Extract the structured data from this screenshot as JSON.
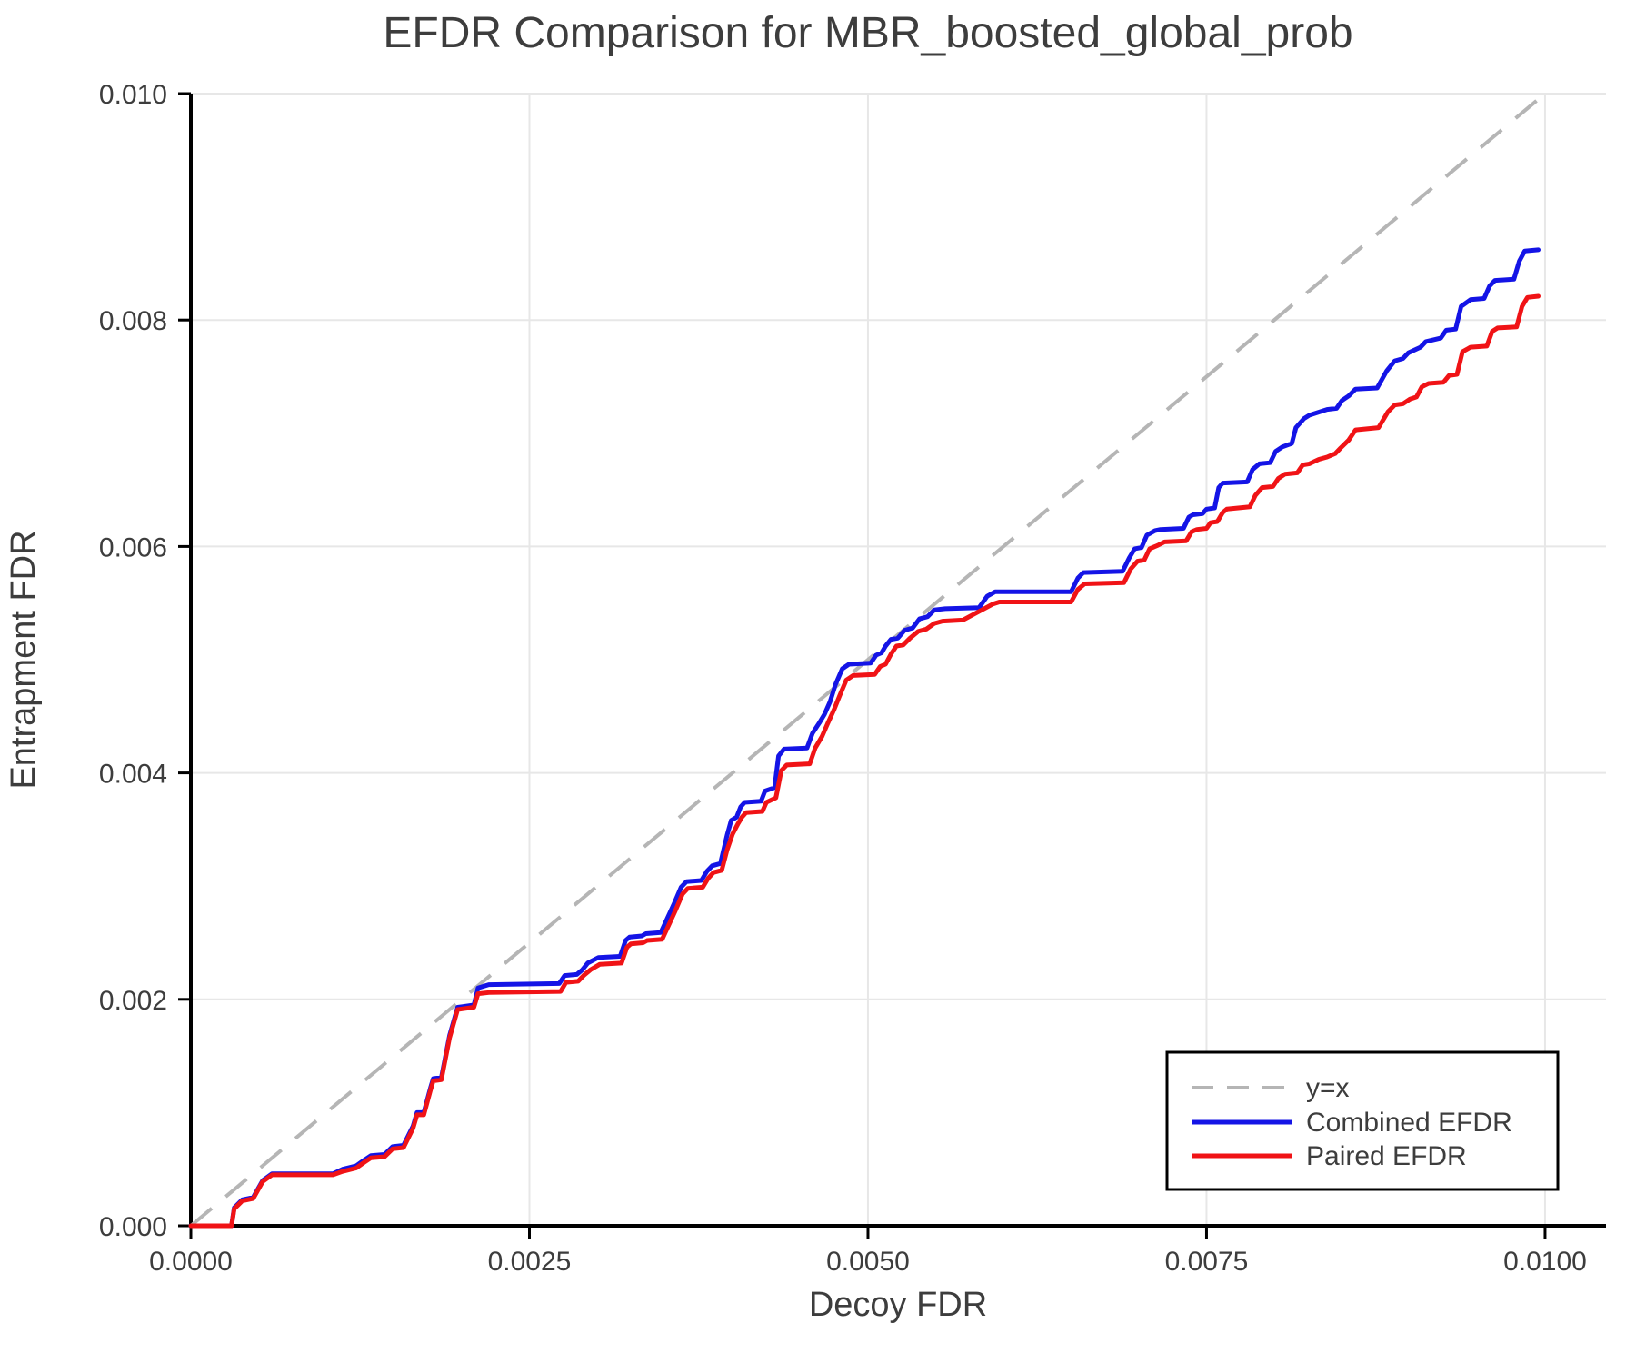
{
  "figure": {
    "title": "EFDR Comparison for MBR_boosted_global_prob",
    "xlabel": "Decoy FDR",
    "ylabel": "Entrapment FDR"
  },
  "colors": {
    "identity": "#b5b5b5",
    "combined": "#1414e6",
    "paired": "#f01316",
    "grid": "#e7e7e7",
    "spine": "#000000",
    "text": "#3d3d3d",
    "legend_border": "#000000",
    "legend_bg": "#ffffff"
  },
  "legend": {
    "items": [
      {
        "label": "y=x"
      },
      {
        "label": "Combined EFDR"
      },
      {
        "label": "Paired EFDR"
      }
    ]
  },
  "chart_data": {
    "type": "line",
    "title": "EFDR Comparison for MBR_boosted_global_prob",
    "xlabel": "Decoy FDR",
    "ylabel": "Entrapment FDR",
    "xlim": [
      0,
      0.01045
    ],
    "ylim": [
      0,
      0.01
    ],
    "grid": true,
    "legend_position": "lower right",
    "xticks": {
      "values": [
        0.0,
        0.0025,
        0.005,
        0.0075,
        0.01
      ],
      "labels": [
        "0.0000",
        "0.0025",
        "0.0050",
        "0.0075",
        "0.0100"
      ]
    },
    "yticks": {
      "values": [
        0.0,
        0.002,
        0.004,
        0.006,
        0.008,
        0.01
      ],
      "labels": [
        "0.000",
        "0.002",
        "0.004",
        "0.006",
        "0.008",
        "0.010"
      ]
    },
    "series": [
      {
        "name": "y=x",
        "style": "dashed",
        "color": "#b5b5b5",
        "width": 4,
        "points": [
          [
            0,
            0
          ],
          [
            0.01,
            0.01
          ]
        ]
      },
      {
        "name": "Combined EFDR",
        "style": "solid",
        "color": "#1414e6",
        "width": 5,
        "points": [
          [
            0,
            0
          ],
          [
            0.0003,
            0
          ],
          [
            0.00032,
            0.00016
          ],
          [
            0.00038,
            0.00023
          ],
          [
            0.00046,
            0.00025
          ],
          [
            0.00053,
            0.0004
          ],
          [
            0.0006,
            0.00046
          ],
          [
            0.00105,
            0.00046
          ],
          [
            0.00112,
            0.0005
          ],
          [
            0.00122,
            0.00053
          ],
          [
            0.00128,
            0.00058
          ],
          [
            0.00133,
            0.00062
          ],
          [
            0.00143,
            0.00063
          ],
          [
            0.00149,
            0.0007
          ],
          [
            0.00157,
            0.00071
          ],
          [
            0.00164,
            0.00088
          ],
          [
            0.00167,
            0.001
          ],
          [
            0.00172,
            0.001
          ],
          [
            0.00177,
            0.00122
          ],
          [
            0.00179,
            0.0013
          ],
          [
            0.00185,
            0.00131
          ],
          [
            0.00191,
            0.00168
          ],
          [
            0.00197,
            0.00193
          ],
          [
            0.00209,
            0.00195
          ],
          [
            0.00212,
            0.0021
          ],
          [
            0.0022,
            0.00213
          ],
          [
            0.00272,
            0.00214
          ],
          [
            0.00276,
            0.00221
          ],
          [
            0.00285,
            0.00222
          ],
          [
            0.00289,
            0.00226
          ],
          [
            0.00293,
            0.00232
          ],
          [
            0.00301,
            0.00237
          ],
          [
            0.00317,
            0.00238
          ],
          [
            0.00321,
            0.00252
          ],
          [
            0.00324,
            0.00255
          ],
          [
            0.00333,
            0.00256
          ],
          [
            0.00336,
            0.00258
          ],
          [
            0.00347,
            0.00259
          ],
          [
            0.00352,
            0.00272
          ],
          [
            0.00357,
            0.00285
          ],
          [
            0.00362,
            0.00299
          ],
          [
            0.00366,
            0.00304
          ],
          [
            0.00377,
            0.00305
          ],
          [
            0.00381,
            0.00313
          ],
          [
            0.00385,
            0.00318
          ],
          [
            0.00391,
            0.0032
          ],
          [
            0.00396,
            0.00345
          ],
          [
            0.00399,
            0.00358
          ],
          [
            0.00403,
            0.00361
          ],
          [
            0.00406,
            0.0037
          ],
          [
            0.00409,
            0.00374
          ],
          [
            0.00421,
            0.00375
          ],
          [
            0.00424,
            0.00384
          ],
          [
            0.00431,
            0.00387
          ],
          [
            0.00434,
            0.00415
          ],
          [
            0.00438,
            0.00421
          ],
          [
            0.00455,
            0.00422
          ],
          [
            0.00459,
            0.00435
          ],
          [
            0.00464,
            0.00444
          ],
          [
            0.00468,
            0.00452
          ],
          [
            0.00472,
            0.00463
          ],
          [
            0.00476,
            0.00478
          ],
          [
            0.00481,
            0.00492
          ],
          [
            0.00486,
            0.00496
          ],
          [
            0.00502,
            0.00497
          ],
          [
            0.00506,
            0.00504
          ],
          [
            0.0051,
            0.00506
          ],
          [
            0.00513,
            0.00512
          ],
          [
            0.00517,
            0.00518
          ],
          [
            0.00522,
            0.00519
          ],
          [
            0.00527,
            0.00526
          ],
          [
            0.00533,
            0.00528
          ],
          [
            0.00538,
            0.00536
          ],
          [
            0.00544,
            0.00538
          ],
          [
            0.00549,
            0.00544
          ],
          [
            0.00557,
            0.00545
          ],
          [
            0.00582,
            0.00546
          ],
          [
            0.00588,
            0.00556
          ],
          [
            0.00594,
            0.0056
          ],
          [
            0.0065,
            0.0056
          ],
          [
            0.00655,
            0.00572
          ],
          [
            0.00659,
            0.00577
          ],
          [
            0.00688,
            0.00578
          ],
          [
            0.00693,
            0.0059
          ],
          [
            0.00697,
            0.00598
          ],
          [
            0.00702,
            0.00599
          ],
          [
            0.00706,
            0.0061
          ],
          [
            0.00712,
            0.00614
          ],
          [
            0.00716,
            0.00615
          ],
          [
            0.00733,
            0.00616
          ],
          [
            0.00737,
            0.00626
          ],
          [
            0.0074,
            0.00628
          ],
          [
            0.00747,
            0.00629
          ],
          [
            0.0075,
            0.00633
          ],
          [
            0.00756,
            0.00634
          ],
          [
            0.00759,
            0.00652
          ],
          [
            0.00762,
            0.00656
          ],
          [
            0.0078,
            0.00657
          ],
          [
            0.00784,
            0.00668
          ],
          [
            0.00789,
            0.00673
          ],
          [
            0.00797,
            0.00674
          ],
          [
            0.00801,
            0.00684
          ],
          [
            0.00806,
            0.00688
          ],
          [
            0.00813,
            0.00691
          ],
          [
            0.00816,
            0.00705
          ],
          [
            0.00822,
            0.00713
          ],
          [
            0.00826,
            0.00716
          ],
          [
            0.00839,
            0.00721
          ],
          [
            0.00846,
            0.00722
          ],
          [
            0.0085,
            0.00729
          ],
          [
            0.00855,
            0.00733
          ],
          [
            0.0086,
            0.00739
          ],
          [
            0.00876,
            0.0074
          ],
          [
            0.00883,
            0.00755
          ],
          [
            0.00889,
            0.00764
          ],
          [
            0.00895,
            0.00766
          ],
          [
            0.00899,
            0.00771
          ],
          [
            0.00908,
            0.00776
          ],
          [
            0.00912,
            0.00781
          ],
          [
            0.00923,
            0.00784
          ],
          [
            0.00927,
            0.00791
          ],
          [
            0.00934,
            0.00792
          ],
          [
            0.00938,
            0.00812
          ],
          [
            0.00945,
            0.00818
          ],
          [
            0.00955,
            0.00819
          ],
          [
            0.00959,
            0.0083
          ],
          [
            0.00963,
            0.00835
          ],
          [
            0.00977,
            0.00836
          ],
          [
            0.00981,
            0.00852
          ],
          [
            0.00985,
            0.00861
          ],
          [
            0.00995,
            0.00862
          ]
        ]
      },
      {
        "name": "Paired EFDR",
        "style": "solid",
        "color": "#f01316",
        "width": 5,
        "points": [
          [
            0,
            0
          ],
          [
            0.0003,
            0
          ],
          [
            0.00032,
            0.00015
          ],
          [
            0.00038,
            0.00022
          ],
          [
            0.00046,
            0.00024
          ],
          [
            0.00053,
            0.00039
          ],
          [
            0.0006,
            0.00045
          ],
          [
            0.00105,
            0.00045
          ],
          [
            0.00112,
            0.00048
          ],
          [
            0.00122,
            0.00051
          ],
          [
            0.00128,
            0.00056
          ],
          [
            0.00133,
            0.0006
          ],
          [
            0.00143,
            0.00061
          ],
          [
            0.00149,
            0.00068
          ],
          [
            0.00157,
            0.00069
          ],
          [
            0.00164,
            0.00086
          ],
          [
            0.00167,
            0.00098
          ],
          [
            0.00172,
            0.00098
          ],
          [
            0.00177,
            0.0012
          ],
          [
            0.00179,
            0.00128
          ],
          [
            0.00185,
            0.00129
          ],
          [
            0.00191,
            0.00166
          ],
          [
            0.00197,
            0.00191
          ],
          [
            0.00209,
            0.00193
          ],
          [
            0.00212,
            0.00205
          ],
          [
            0.0022,
            0.00206
          ],
          [
            0.00273,
            0.00207
          ],
          [
            0.00277,
            0.00215
          ],
          [
            0.00286,
            0.00216
          ],
          [
            0.0029,
            0.00221
          ],
          [
            0.00295,
            0.00226
          ],
          [
            0.00302,
            0.00231
          ],
          [
            0.00318,
            0.00232
          ],
          [
            0.00322,
            0.00246
          ],
          [
            0.00325,
            0.00249
          ],
          [
            0.00334,
            0.0025
          ],
          [
            0.00337,
            0.00252
          ],
          [
            0.00348,
            0.00253
          ],
          [
            0.00353,
            0.00266
          ],
          [
            0.00358,
            0.00279
          ],
          [
            0.00363,
            0.00293
          ],
          [
            0.00367,
            0.00298
          ],
          [
            0.00378,
            0.00299
          ],
          [
            0.00382,
            0.00307
          ],
          [
            0.00386,
            0.00312
          ],
          [
            0.00392,
            0.00314
          ],
          [
            0.00396,
            0.00332
          ],
          [
            0.004,
            0.00346
          ],
          [
            0.00404,
            0.00355
          ],
          [
            0.00407,
            0.00361
          ],
          [
            0.0041,
            0.00365
          ],
          [
            0.00422,
            0.00366
          ],
          [
            0.00425,
            0.00374
          ],
          [
            0.00432,
            0.00378
          ],
          [
            0.00436,
            0.00402
          ],
          [
            0.0044,
            0.00407
          ],
          [
            0.00457,
            0.00408
          ],
          [
            0.00461,
            0.00422
          ],
          [
            0.00466,
            0.00432
          ],
          [
            0.0047,
            0.00443
          ],
          [
            0.00475,
            0.00456
          ],
          [
            0.00479,
            0.00468
          ],
          [
            0.00484,
            0.00482
          ],
          [
            0.00489,
            0.00486
          ],
          [
            0.00505,
            0.00487
          ],
          [
            0.00509,
            0.00494
          ],
          [
            0.00513,
            0.00496
          ],
          [
            0.00517,
            0.00505
          ],
          [
            0.00521,
            0.00512
          ],
          [
            0.00526,
            0.00513
          ],
          [
            0.00531,
            0.00519
          ],
          [
            0.00537,
            0.00525
          ],
          [
            0.00543,
            0.00527
          ],
          [
            0.00549,
            0.00532
          ],
          [
            0.00555,
            0.00534
          ],
          [
            0.0057,
            0.00535
          ],
          [
            0.00592,
            0.00549
          ],
          [
            0.00597,
            0.00551
          ],
          [
            0.0065,
            0.00551
          ],
          [
            0.00655,
            0.00562
          ],
          [
            0.0066,
            0.00567
          ],
          [
            0.00689,
            0.00568
          ],
          [
            0.00694,
            0.0058
          ],
          [
            0.00699,
            0.00587
          ],
          [
            0.00704,
            0.00588
          ],
          [
            0.00708,
            0.00598
          ],
          [
            0.00714,
            0.00601
          ],
          [
            0.00719,
            0.00604
          ],
          [
            0.00735,
            0.00605
          ],
          [
            0.00739,
            0.00613
          ],
          [
            0.00743,
            0.00615
          ],
          [
            0.0075,
            0.00616
          ],
          [
            0.00753,
            0.00621
          ],
          [
            0.00758,
            0.00622
          ],
          [
            0.00762,
            0.0063
          ],
          [
            0.00765,
            0.00633
          ],
          [
            0.00782,
            0.00635
          ],
          [
            0.00786,
            0.00645
          ],
          [
            0.00791,
            0.00652
          ],
          [
            0.00799,
            0.00653
          ],
          [
            0.00803,
            0.0066
          ],
          [
            0.00808,
            0.00664
          ],
          [
            0.00817,
            0.00665
          ],
          [
            0.00821,
            0.00672
          ],
          [
            0.00826,
            0.00673
          ],
          [
            0.00833,
            0.00677
          ],
          [
            0.00839,
            0.00679
          ],
          [
            0.00845,
            0.00682
          ],
          [
            0.00849,
            0.00687
          ],
          [
            0.00855,
            0.00694
          ],
          [
            0.0086,
            0.00703
          ],
          [
            0.00877,
            0.00705
          ],
          [
            0.00884,
            0.00719
          ],
          [
            0.00889,
            0.00725
          ],
          [
            0.00895,
            0.00726
          ],
          [
            0.009,
            0.0073
          ],
          [
            0.00905,
            0.00732
          ],
          [
            0.00909,
            0.00741
          ],
          [
            0.00914,
            0.00744
          ],
          [
            0.00925,
            0.00745
          ],
          [
            0.00929,
            0.00751
          ],
          [
            0.00935,
            0.00752
          ],
          [
            0.00939,
            0.00772
          ],
          [
            0.00945,
            0.00776
          ],
          [
            0.00957,
            0.00777
          ],
          [
            0.00961,
            0.0079
          ],
          [
            0.00965,
            0.00793
          ],
          [
            0.00979,
            0.00794
          ],
          [
            0.00983,
            0.00812
          ],
          [
            0.00987,
            0.0082
          ],
          [
            0.00995,
            0.00821
          ]
        ]
      }
    ]
  },
  "layout_note": ""
}
